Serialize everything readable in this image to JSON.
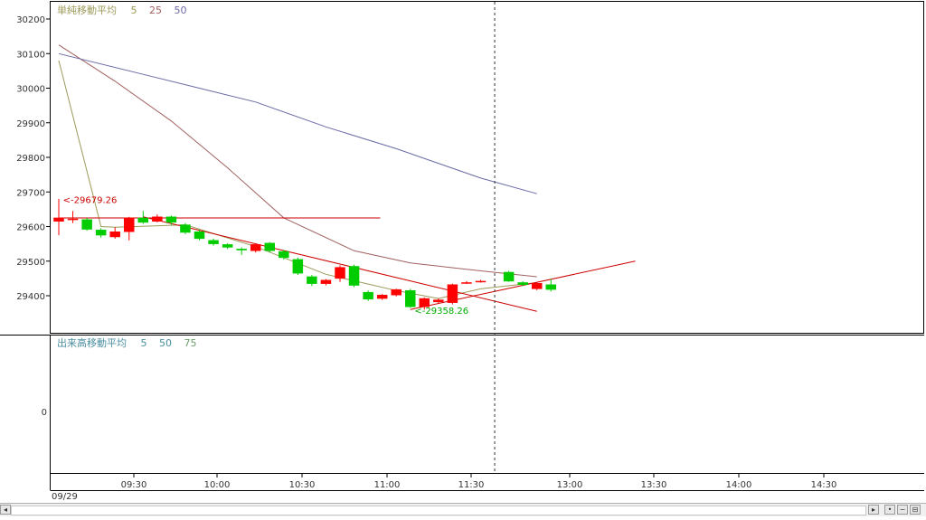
{
  "panels": {
    "price_legend": {
      "title": "単純移動平均",
      "periods": [
        {
          "label": "5",
          "color": "#9c9a5a"
        },
        {
          "label": "25",
          "color": "#a06060"
        },
        {
          "label": "50",
          "color": "#6a6aa6"
        }
      ]
    },
    "volume_legend": {
      "title": "出来高移動平均",
      "periods": [
        {
          "label": "5",
          "color": "#4a8fa0"
        },
        {
          "label": "50",
          "color": "#4a8fa0"
        },
        {
          "label": "75",
          "color": "#6aa06a"
        }
      ]
    }
  },
  "colors": {
    "up": "#ff0000",
    "down": "#00cc00",
    "ma5": "#9c9a5a",
    "ma25": "#a06060",
    "ma50": "#6a6aa6",
    "trendline": "#cc0000",
    "text": "#333333",
    "grid": "#000000"
  },
  "chart_data": [
    {
      "type": "candlestick",
      "x_axis": {
        "date_label": "09/29",
        "tick_labels": [
          "09:30",
          "10:00",
          "10:30",
          "11:00",
          "11:30",
          "13:00",
          "13:30",
          "14:00",
          "14:30"
        ]
      },
      "y_axis": {
        "range": [
          29310,
          30230
        ],
        "tick_labels": [
          "30200",
          "30100",
          "30000",
          "29900",
          "29800",
          "29700",
          "29600",
          "29500",
          "29400"
        ],
        "ticks": [
          30200,
          30100,
          30000,
          29900,
          29800,
          29700,
          29600,
          29500,
          29400
        ]
      },
      "candles": [
        {
          "o": 29615,
          "h": 29680,
          "l": 29575,
          "c": 29625
        },
        {
          "o": 29620,
          "h": 29645,
          "l": 29610,
          "c": 29622
        },
        {
          "o": 29620,
          "h": 29625,
          "l": 29588,
          "c": 29592
        },
        {
          "o": 29590,
          "h": 29595,
          "l": 29568,
          "c": 29575
        },
        {
          "o": 29570,
          "h": 29598,
          "l": 29565,
          "c": 29585
        },
        {
          "o": 29585,
          "h": 29628,
          "l": 29560,
          "c": 29625
        },
        {
          "o": 29625,
          "h": 29645,
          "l": 29608,
          "c": 29612
        },
        {
          "o": 29615,
          "h": 29635,
          "l": 29612,
          "c": 29628
        },
        {
          "o": 29628,
          "h": 29632,
          "l": 29605,
          "c": 29612
        },
        {
          "o": 29605,
          "h": 29610,
          "l": 29578,
          "c": 29583
        },
        {
          "o": 29585,
          "h": 29590,
          "l": 29560,
          "c": 29565
        },
        {
          "o": 29560,
          "h": 29565,
          "l": 29545,
          "c": 29550
        },
        {
          "o": 29548,
          "h": 29552,
          "l": 29535,
          "c": 29540
        },
        {
          "o": 29535,
          "h": 29540,
          "l": 29518,
          "c": 29532
        },
        {
          "o": 29530,
          "h": 29552,
          "l": 29525,
          "c": 29548
        },
        {
          "o": 29552,
          "h": 29555,
          "l": 29525,
          "c": 29530
        },
        {
          "o": 29528,
          "h": 29532,
          "l": 29505,
          "c": 29510
        },
        {
          "o": 29505,
          "h": 29510,
          "l": 29460,
          "c": 29465
        },
        {
          "o": 29455,
          "h": 29460,
          "l": 29428,
          "c": 29435
        },
        {
          "o": 29435,
          "h": 29448,
          "l": 29430,
          "c": 29445
        },
        {
          "o": 29450,
          "h": 29488,
          "l": 29440,
          "c": 29482
        },
        {
          "o": 29485,
          "h": 29490,
          "l": 29425,
          "c": 29430
        },
        {
          "o": 29410,
          "h": 29415,
          "l": 29385,
          "c": 29390
        },
        {
          "o": 29392,
          "h": 29405,
          "l": 29388,
          "c": 29402
        },
        {
          "o": 29402,
          "h": 29420,
          "l": 29398,
          "c": 29418
        },
        {
          "o": 29415,
          "h": 29420,
          "l": 29365,
          "c": 29368
        },
        {
          "o": 29368,
          "h": 29395,
          "l": 29360,
          "c": 29392
        },
        {
          "o": 29382,
          "h": 29392,
          "l": 29378,
          "c": 29388
        },
        {
          "o": 29380,
          "h": 29435,
          "l": 29375,
          "c": 29432
        },
        {
          "o": 29438,
          "h": 29442,
          "l": 29434,
          "c": 29438
        },
        {
          "o": 29442,
          "h": 29446,
          "l": 29438,
          "c": 29442
        },
        {
          "o": 29468,
          "h": 29472,
          "l": 29440,
          "c": 29442
        },
        {
          "o": 29438,
          "h": 29442,
          "l": 29428,
          "c": 29432
        },
        {
          "o": 29420,
          "h": 29438,
          "l": 29416,
          "c": 29436
        },
        {
          "o": 29432,
          "h": 29448,
          "l": 29412,
          "c": 29418
        }
      ],
      "candle_bar_positions": [
        0,
        1,
        2,
        3,
        4,
        5,
        6,
        7,
        8,
        9,
        10,
        11,
        12,
        13,
        14,
        15,
        16,
        17,
        18,
        19,
        20,
        21,
        22,
        23,
        24,
        25,
        26,
        27,
        28,
        29,
        30,
        32,
        33,
        34,
        35
      ],
      "ma_lines": [
        {
          "period": "5",
          "points": [
            [
              0,
              30080
            ],
            [
              3,
              29600
            ],
            [
              4,
              29598
            ],
            [
              9,
              29605
            ],
            [
              14,
              29542
            ],
            [
              19,
              29462
            ],
            [
              24,
              29415
            ],
            [
              27,
              29392
            ],
            [
              30,
              29420
            ],
            [
              34,
              29438
            ]
          ]
        },
        {
          "period": "25",
          "points": [
            [
              0,
              30125
            ],
            [
              4,
              30020
            ],
            [
              8,
              29905
            ],
            [
              12,
              29770
            ],
            [
              16,
              29625
            ],
            [
              21,
              29530
            ],
            [
              25,
              29495
            ],
            [
              30,
              29472
            ],
            [
              34,
              29455
            ]
          ]
        },
        {
          "period": "50",
          "points": [
            [
              0,
              30100
            ],
            [
              6,
              30040
            ],
            [
              10,
              30000
            ],
            [
              14,
              29960
            ],
            [
              19,
              29888
            ],
            [
              24,
              29825
            ],
            [
              30,
              29740
            ],
            [
              34,
              29695
            ]
          ]
        }
      ],
      "horizontal_line": {
        "value": 29625,
        "from": 0,
        "to": 19
      },
      "trendlines": [
        {
          "points": [
            [
              6,
              29628
            ],
            [
              34,
              29355
            ]
          ]
        },
        {
          "points": [
            [
              25,
              29360
            ],
            [
              41,
              29500
            ]
          ]
        }
      ],
      "annotations": [
        {
          "text": "<-29679.26",
          "x": 0.3,
          "y": 29679,
          "color": "#cc0000"
        },
        {
          "text": "<-29358.26",
          "x": 25.3,
          "y": 29358,
          "color": "#00aa00"
        }
      ],
      "crosshair_x": 31,
      "volume_panel": {
        "tick_labels": [
          "0"
        ]
      }
    }
  ]
}
